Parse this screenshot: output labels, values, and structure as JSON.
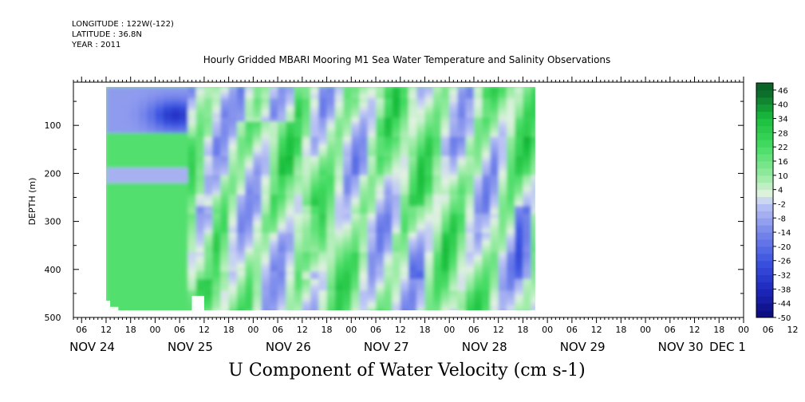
{
  "header": {
    "longitude": "LONGITUDE : 122W(-122)",
    "latitude": "LATITUDE : 36.8N",
    "year": "YEAR : 2011"
  },
  "title": "Hourly Gridded MBARI Mooring M1 Sea Water Temperature and Salinity Observations",
  "variable_label": "U Component of Water Velocity (cm s-1)",
  "chart_data": {
    "type": "heatmap",
    "title": "Hourly Gridded MBARI Mooring M1 Sea Water Temperature and Salinity Observations",
    "xlabel": "",
    "ylabel": "DEPTH (m)",
    "colorbar_label": "U Component of Water Velocity (cm s-1)",
    "y_reversed": true,
    "ylim": [
      500,
      10
    ],
    "y_ticks": [
      100,
      200,
      300,
      400,
      500
    ],
    "xlim": [
      "2011-11-24 04:00",
      "2011-12-01 00:00"
    ],
    "x_hour_ticks": [
      "06",
      "12",
      "18",
      "00",
      "06",
      "12",
      "18",
      "00",
      "06",
      "12",
      "18",
      "00",
      "06",
      "12",
      "18",
      "00",
      "06",
      "12",
      "18",
      "00",
      "06",
      "12",
      "18",
      "00",
      "06",
      "12",
      "18",
      "00",
      "06",
      "12",
      "18",
      "00"
    ],
    "x_day_labels": [
      "NOV 24",
      "NOV 25",
      "NOV 26",
      "NOV 27",
      "NOV 28",
      "NOV 29",
      "NOV 30",
      "DEC 1"
    ],
    "data_extent": {
      "time_start": "2011-11-24 12:00",
      "time_end": "2011-11-28 21:00",
      "depth_top": 20,
      "depth_bottom": 485
    },
    "colorbar_ticks": [
      46,
      40,
      34,
      28,
      22,
      16,
      10,
      4,
      -2,
      -8,
      -14,
      -20,
      -26,
      -32,
      -38,
      -44,
      -50
    ],
    "color_levels": [
      -50,
      -47,
      -44,
      -41,
      -38,
      -35,
      -32,
      -29,
      -26,
      -23,
      -20,
      -17,
      -14,
      -11,
      -8,
      -5,
      -2,
      1,
      4,
      7,
      10,
      13,
      16,
      19,
      22,
      25,
      28,
      31,
      34,
      37,
      40,
      43,
      46,
      49
    ],
    "colors": {
      "strong_negative": "#0a0a80",
      "negative": "#3c50dc",
      "weak_negative": "#a0aaf0",
      "near_zero": "#dcf0dc",
      "weak_positive": "#8ce896",
      "positive": "#1ed246",
      "strong_positive": "#0a6428"
    }
  }
}
